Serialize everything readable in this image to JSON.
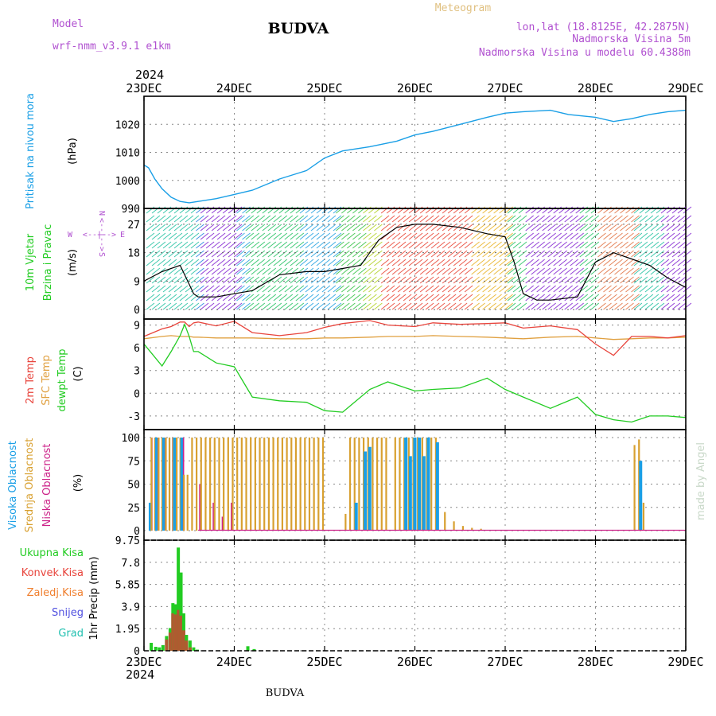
{
  "header": {
    "model_label": "Model",
    "model_name": "wrf-nmm_v3.9.1 e1km",
    "station": "BUDVA",
    "meteogram": "Meteogram",
    "lonlat": "lon,lat (18.8125E, 42.2875N)",
    "elevation": "Nadmorska Visina 5m",
    "model_elevation": "Nadmorska Visina u modelu 60.4388m",
    "year": "2024",
    "footer_station": "BUDVA",
    "credit": "made by Angel"
  },
  "colors": {
    "pressure": "#1a9fe6",
    "temp2m": "#e8443c",
    "sfc_temp": "#e0a040",
    "dewpoint": "#22cc22",
    "cloud_high": "#1a9fe6",
    "cloud_mid": "#d8a030",
    "cloud_low": "#cc2288",
    "precip_total": "#22cc22",
    "precip_conv": "#e8443c",
    "model_purple": "#b050d0",
    "meteogram_title": "#e0c080",
    "credit": "#c8d8c8"
  },
  "panel_labels": {
    "pressure": {
      "name": "Pritisak na nivou mora",
      "unit": "(hPa)"
    },
    "wind": {
      "name1": "10m Vjetar",
      "name2": "Brzina i Pravac",
      "unit": "(m/s)",
      "compass_n": "N",
      "compass_s": "S",
      "compass_w": "W",
      "compass_e": "E",
      "arrow_up": "<--|-->",
      "arrow_side": "<--|-->"
    },
    "temp": {
      "name1": "2m Temp",
      "name2": "SFC Temp",
      "name3": "dewpt Temp",
      "unit": "(C)"
    },
    "cloud": {
      "name1": "Visoka Oblacnost",
      "name2": "Srednja Oblacnost",
      "name3": "Niska Oblacnost",
      "unit": "(%)"
    },
    "precip": {
      "unit": "1hr Precip (mm)",
      "legend": [
        "Ukupna Kisa",
        "Konvek.Kisa",
        "Zaledj.Kisa",
        "Snijeg",
        "Grad"
      ]
    }
  },
  "chart_data": [
    {
      "type": "line",
      "name": "pressure",
      "x_labels": [
        "23DEC",
        "24DEC",
        "25DEC",
        "26DEC",
        "27DEC",
        "28DEC",
        "29DEC"
      ],
      "yticks": [
        990,
        1000,
        1010,
        1020
      ],
      "ylim": [
        990,
        1030
      ],
      "x": [
        0,
        0.05,
        0.12,
        0.2,
        0.3,
        0.4,
        0.5,
        0.6,
        0.8,
        1.0,
        1.2,
        1.5,
        1.8,
        2.0,
        2.2,
        2.5,
        2.8,
        3.0,
        3.2,
        3.5,
        3.8,
        4.0,
        4.2,
        4.5,
        4.7,
        5.0,
        5.2,
        5.4,
        5.6,
        5.8,
        6.0
      ],
      "series": [
        {
          "values": [
            1005.5,
            1004.5,
            1000.5,
            997,
            994,
            992.5,
            992,
            992.5,
            993.5,
            995,
            996.5,
            1000.5,
            1003.5,
            1008,
            1010.5,
            1012,
            1014,
            1016.2,
            1017.5,
            1020,
            1022.5,
            1024,
            1024.5,
            1025,
            1023.5,
            1022.5,
            1021,
            1022,
            1023.5,
            1024.5,
            1025
          ]
        }
      ]
    },
    {
      "type": "line",
      "name": "wind",
      "yticks": [
        0,
        9,
        18,
        27
      ],
      "ylim": [
        -3,
        32
      ],
      "x": [
        0,
        0.2,
        0.4,
        0.5,
        0.55,
        0.6,
        0.8,
        1.0,
        1.2,
        1.5,
        1.8,
        2.0,
        2.2,
        2.4,
        2.6,
        2.8,
        3.0,
        3.2,
        3.5,
        3.8,
        4.0,
        4.1,
        4.2,
        4.35,
        4.5,
        4.8,
        5.0,
        5.2,
        5.4,
        5.6,
        5.8,
        6.0
      ],
      "series": [
        {
          "values": [
            9,
            12,
            14,
            8,
            5,
            4,
            4,
            5,
            6,
            11,
            12,
            12,
            13,
            14,
            22,
            26,
            27,
            27,
            26,
            24,
            23,
            15,
            5,
            3,
            3,
            4,
            15,
            18,
            16,
            14,
            10,
            7
          ]
        }
      ]
    },
    {
      "type": "line",
      "name": "temperature",
      "yticks": [
        -3,
        0,
        3,
        6,
        9
      ],
      "ylim": [
        -4.8,
        9.8
      ],
      "x": [
        0,
        0.2,
        0.3,
        0.4,
        0.45,
        0.5,
        0.55,
        0.6,
        0.8,
        1.0,
        1.2,
        1.5,
        1.8,
        2.0,
        2.2,
        2.5,
        2.7,
        3.0,
        3.2,
        3.5,
        3.8,
        4.0,
        4.2,
        4.5,
        4.8,
        5.0,
        5.2,
        5.4,
        5.6,
        5.8,
        6.0
      ],
      "series": [
        {
          "name": "2m Temp",
          "values": [
            7.5,
            8.5,
            8.8,
            9.4,
            9.4,
            8.8,
            9.3,
            9.4,
            8.9,
            9.5,
            8.0,
            7.6,
            8.0,
            8.7,
            9.2,
            9.6,
            9.0,
            8.8,
            9.3,
            9.1,
            9.2,
            9.3,
            8.6,
            8.9,
            8.4,
            6.5,
            5.0,
            7.5,
            7.5,
            7.3,
            7.6
          ]
        },
        {
          "name": "SFC Temp",
          "values": [
            7.2,
            7.5,
            7.6,
            7.5,
            7.5,
            7.5,
            7.4,
            7.4,
            7.3,
            7.3,
            7.3,
            7.2,
            7.2,
            7.3,
            7.3,
            7.4,
            7.5,
            7.5,
            7.6,
            7.5,
            7.4,
            7.3,
            7.2,
            7.4,
            7.5,
            7.3,
            7.1,
            7.2,
            7.3,
            7.3,
            7.4
          ]
        },
        {
          "name": "dewpt Temp",
          "values": [
            6.5,
            3.6,
            5.5,
            7.6,
            9.1,
            7.5,
            5.5,
            5.5,
            4.0,
            3.5,
            -0.5,
            -1.0,
            -1.2,
            -2.3,
            -2.5,
            0.5,
            1.5,
            0.3,
            0.5,
            0.7,
            2.0,
            0.5,
            -0.5,
            -2.0,
            -0.5,
            -2.8,
            -3.5,
            -3.8,
            -3.0,
            -3.0,
            -3.2
          ]
        }
      ]
    },
    {
      "type": "bar",
      "name": "cloud",
      "yticks": [
        0,
        25,
        50,
        75,
        100
      ],
      "ylim": [
        0,
        100
      ],
      "x": [
        0.07,
        0.1,
        0.14,
        0.18,
        0.22,
        0.26,
        0.3,
        0.34,
        0.38,
        0.42,
        0.46,
        0.5,
        0.55,
        0.6,
        0.65,
        0.7,
        0.75,
        0.8,
        0.85,
        0.9,
        0.95,
        1.0,
        1.05,
        1.1,
        1.15,
        1.2,
        1.25,
        1.3,
        1.35,
        1.4,
        1.45,
        1.5,
        1.55,
        1.6,
        1.65,
        1.7,
        1.75,
        1.8,
        1.85,
        1.9,
        1.95,
        2.0,
        2.25,
        2.3,
        2.35,
        2.4,
        2.45,
        2.5,
        2.55,
        2.6,
        2.65,
        2.7,
        2.8,
        2.85,
        2.9,
        2.95,
        3.0,
        3.05,
        3.1,
        3.15,
        3.2,
        3.25,
        3.35,
        3.45,
        3.55,
        3.65,
        3.75,
        5.45,
        5.5,
        5.55
      ],
      "series": [
        {
          "name": "Visoka Oblacnost",
          "values": [
            30,
            0,
            100,
            0,
            100,
            0,
            0,
            100,
            0,
            100,
            0,
            0,
            0,
            0,
            0,
            0,
            0,
            0,
            0,
            0,
            0,
            0,
            0,
            0,
            0,
            0,
            0,
            0,
            0,
            0,
            0,
            0,
            0,
            0,
            0,
            0,
            0,
            0,
            0,
            0,
            0,
            0,
            0,
            0,
            30,
            0,
            85,
            90,
            0,
            0,
            0,
            0,
            0,
            0,
            100,
            80,
            100,
            100,
            80,
            100,
            0,
            95,
            0,
            0,
            0,
            0,
            0,
            0,
            75,
            0
          ]
        },
        {
          "name": "Srednja Oblacnost",
          "values": [
            0,
            100,
            100,
            100,
            100,
            100,
            100,
            100,
            100,
            100,
            60,
            60,
            100,
            100,
            100,
            100,
            100,
            100,
            100,
            100,
            100,
            100,
            100,
            100,
            100,
            100,
            100,
            100,
            100,
            100,
            100,
            100,
            100,
            100,
            100,
            100,
            100,
            100,
            100,
            100,
            100,
            100,
            18,
            100,
            100,
            100,
            100,
            100,
            100,
            100,
            100,
            100,
            100,
            100,
            100,
            100,
            100,
            100,
            100,
            100,
            100,
            100,
            20,
            10,
            5,
            3,
            2,
            92,
            98,
            30
          ]
        },
        {
          "name": "Niska Oblacnost",
          "values": [
            100,
            0,
            100,
            0,
            100,
            0,
            100,
            0,
            0,
            100,
            0,
            0,
            0,
            50,
            0,
            0,
            30,
            0,
            15,
            0,
            30,
            0,
            0,
            0,
            0,
            0,
            0,
            0,
            0,
            0,
            0,
            0,
            0,
            0,
            0,
            0,
            0,
            0,
            0,
            0,
            0,
            0,
            0,
            0,
            0,
            0,
            0,
            0,
            0,
            0,
            0,
            0,
            0,
            0,
            0,
            0,
            0,
            0,
            0,
            0,
            0,
            0,
            0,
            0,
            0,
            0,
            0,
            0,
            0,
            0
          ]
        }
      ]
    },
    {
      "type": "bar",
      "name": "precip",
      "x_labels": [
        "23DEC",
        "24DEC",
        "25DEC",
        "26DEC",
        "27DEC",
        "28DEC",
        "29DEC"
      ],
      "yticks": [
        0,
        1.95,
        3.9,
        5.85,
        7.8,
        9.75
      ],
      "ylim": [
        0,
        9.75
      ],
      "x": [
        0.08,
        0.13,
        0.17,
        0.21,
        0.25,
        0.29,
        0.32,
        0.35,
        0.38,
        0.41,
        0.44,
        0.47,
        0.51,
        0.55,
        0.59,
        1.15,
        1.22
      ],
      "series": [
        {
          "name": "Ukupna Kisa",
          "values": [
            0.7,
            0.35,
            0.3,
            0.5,
            1.3,
            2.0,
            4.2,
            4.1,
            9.1,
            6.9,
            3.3,
            1.4,
            0.9,
            0.3,
            0.1,
            0.4,
            0.15
          ]
        },
        {
          "name": "Konvek.Kisa",
          "values": [
            0,
            0,
            0,
            0,
            1.0,
            1.6,
            3.3,
            3.2,
            3.6,
            3.1,
            1.8,
            0.9,
            0.3,
            0,
            0,
            0,
            0
          ]
        }
      ]
    }
  ]
}
